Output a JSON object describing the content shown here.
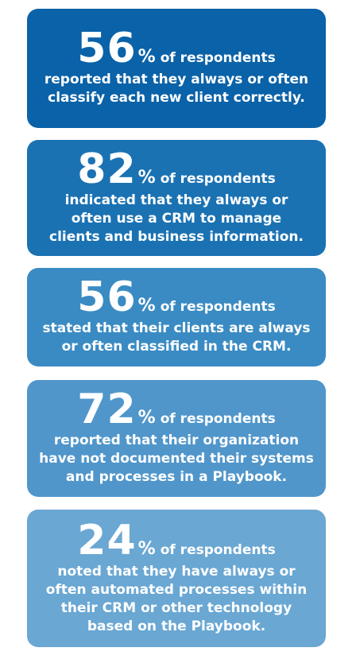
{
  "stats": [
    {
      "value": "56",
      "percent_sign": "%",
      "suffix": "of respondents",
      "text": "reported that they always or often\nclassify each new client correctly."
    },
    {
      "value": "82",
      "percent_sign": "%",
      "suffix": "of respondents",
      "text": "indicated that they always or\noften use a CRM to manage\nclients and business information."
    },
    {
      "value": "56",
      "percent_sign": "%",
      "suffix": "of respondents",
      "text": "stated that their clients are always\nor often classified in the CRM."
    },
    {
      "value": "72",
      "percent_sign": "%",
      "suffix": "of respondents",
      "text": "reported that their organization\nhave not documented their systems\nand processes in a Playbook."
    },
    {
      "value": "24",
      "percent_sign": "%",
      "suffix": "of respondents",
      "text": "noted that they have always or\noften automated processes within\ntheir CRM or other technology\nbased on the Playbook."
    }
  ],
  "colors": {
    "card_1": "#0a62a8",
    "card_2": "#1a72b3",
    "card_3": "#3a8bc3",
    "card_4": "#5096cb",
    "card_5": "#6aa7d3",
    "text": "#ffffff"
  }
}
